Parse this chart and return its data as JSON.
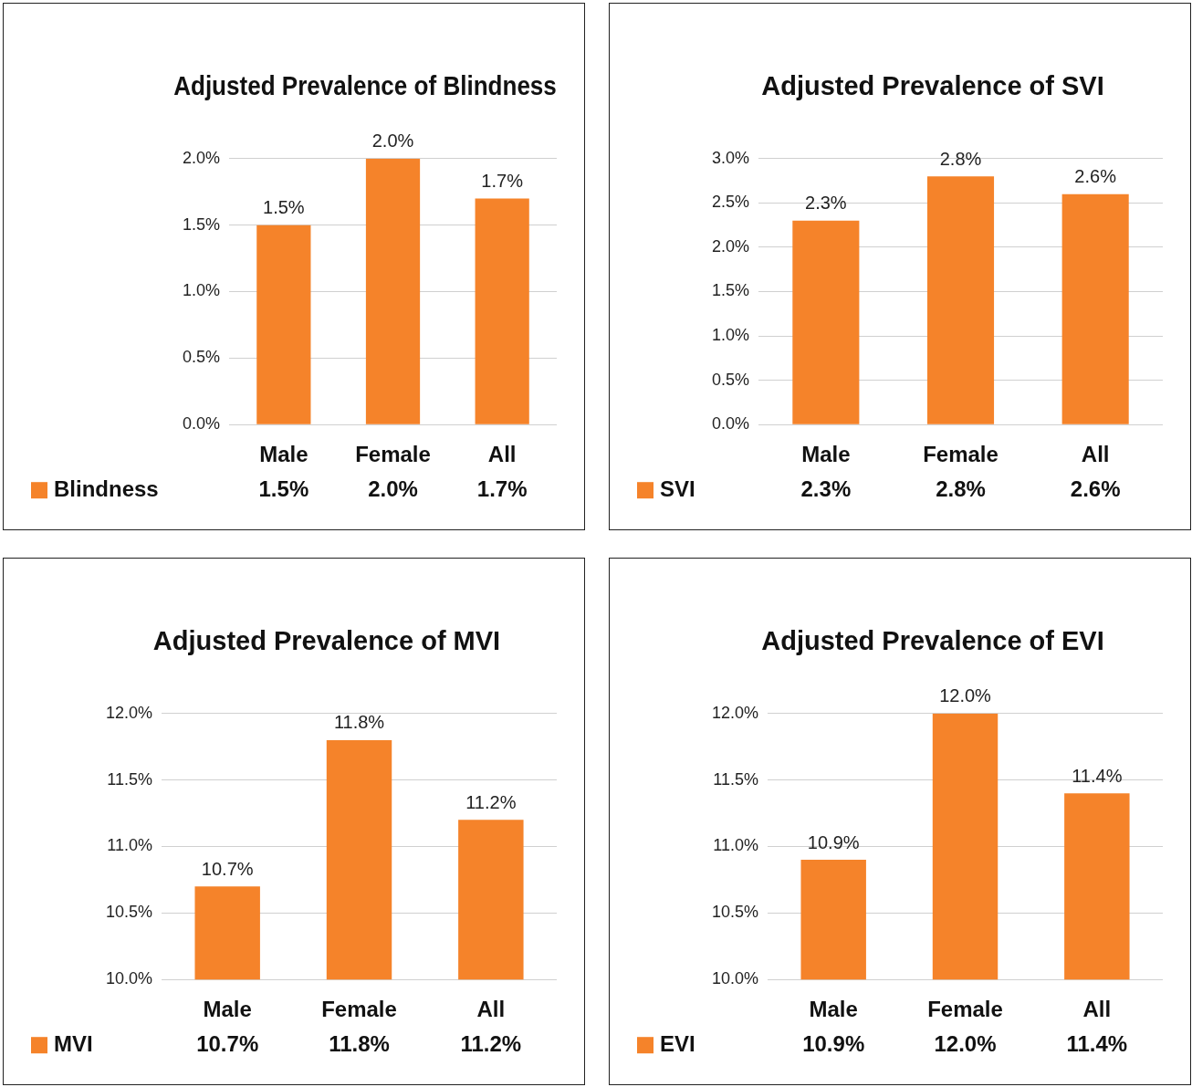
{
  "chart_data": [
    {
      "type": "bar",
      "title": "Adjusted Prevalence of Blindness",
      "categories": [
        "Male",
        "Female",
        "All"
      ],
      "series": [
        {
          "name": "Blindness",
          "color": "#f5832a",
          "values": [
            1.5,
            2.0,
            1.7
          ],
          "value_labels": [
            "1.5%",
            "2.0%",
            "1.7%"
          ]
        }
      ],
      "ylim": [
        0,
        2
      ],
      "yticks": [
        {
          "value": 0,
          "label": "0.0%"
        },
        {
          "value": 0.5,
          "label": "0.5%"
        },
        {
          "value": 1,
          "label": "1.0%"
        },
        {
          "value": 1.5,
          "label": "1.5%"
        },
        {
          "value": 2,
          "label": "2.0%"
        }
      ],
      "grid": "y",
      "legend": "bottom left"
    },
    {
      "type": "bar",
      "title": "Adjusted Prevalence of SVI",
      "categories": [
        "Male",
        "Female",
        "All"
      ],
      "series": [
        {
          "name": "SVI",
          "color": "#f5832a",
          "values": [
            2.3,
            2.8,
            2.6
          ],
          "value_labels": [
            "2.3%",
            "2.8%",
            "2.6%"
          ]
        }
      ],
      "ylim": [
        0,
        3
      ],
      "yticks": [
        {
          "value": 0,
          "label": "0.0%"
        },
        {
          "value": 0.5,
          "label": "0.5%"
        },
        {
          "value": 1,
          "label": "1.0%"
        },
        {
          "value": 1.5,
          "label": "1.5%"
        },
        {
          "value": 2,
          "label": "2.0%"
        },
        {
          "value": 2.5,
          "label": "2.5%"
        },
        {
          "value": 3,
          "label": "3.0%"
        }
      ],
      "grid": "y",
      "legend": "bottom left"
    },
    {
      "type": "bar",
      "title": "Adjusted Prevalence of MVI",
      "categories": [
        "Male",
        "Female",
        "All"
      ],
      "series": [
        {
          "name": "MVI",
          "color": "#f5832a",
          "values": [
            10.7,
            11.8,
            11.2
          ],
          "value_labels": [
            "10.7%",
            "11.8%",
            "11.2%"
          ]
        }
      ],
      "ylim": [
        10,
        12
      ],
      "yticks": [
        {
          "value": 10,
          "label": "10.0%"
        },
        {
          "value": 10.5,
          "label": "10.5%"
        },
        {
          "value": 11,
          "label": "11.0%"
        },
        {
          "value": 11.5,
          "label": "11.5%"
        },
        {
          "value": 12,
          "label": "12.0%"
        }
      ],
      "grid": "y",
      "legend": "bottom left"
    },
    {
      "type": "bar",
      "title": "Adjusted Prevalence of EVI",
      "categories": [
        "Male",
        "Female",
        "All"
      ],
      "series": [
        {
          "name": "EVI",
          "color": "#f5832a",
          "values": [
            10.9,
            12.0,
            11.4
          ],
          "value_labels": [
            "10.9%",
            "12.0%",
            "11.4%"
          ]
        }
      ],
      "ylim": [
        10,
        12
      ],
      "yticks": [
        {
          "value": 10,
          "label": "10.0%"
        },
        {
          "value": 10.5,
          "label": "10.5%"
        },
        {
          "value": 11,
          "label": "11.0%"
        },
        {
          "value": 11.5,
          "label": "11.5%"
        },
        {
          "value": 12,
          "label": "12.0%"
        }
      ],
      "grid": "y",
      "legend": "bottom left"
    }
  ]
}
